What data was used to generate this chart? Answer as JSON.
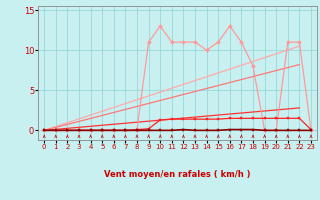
{
  "bg_color": "#c8f0f0",
  "grid_color": "#99d9d9",
  "xlabel": "Vent moyen/en rafales ( km/h )",
  "xlim": [
    -0.5,
    23.5
  ],
  "ylim": [
    -1.2,
    15.5
  ],
  "yticks": [
    0,
    5,
    10,
    15
  ],
  "xticks": [
    0,
    1,
    2,
    3,
    4,
    5,
    6,
    7,
    8,
    9,
    10,
    11,
    12,
    13,
    14,
    15,
    16,
    17,
    18,
    19,
    20,
    21,
    22,
    23
  ],
  "x": [
    0,
    1,
    2,
    3,
    4,
    5,
    6,
    7,
    8,
    9,
    10,
    11,
    12,
    13,
    14,
    15,
    16,
    17,
    18,
    19,
    20,
    21,
    22,
    23
  ],
  "line_pink_y": [
    0,
    0,
    0,
    0,
    0,
    0,
    0,
    0,
    0.1,
    11,
    13,
    11,
    11,
    11,
    10,
    11,
    13,
    11,
    8,
    0,
    0,
    11,
    11,
    0
  ],
  "line_pink_color": "#ff9999",
  "line_red_y": [
    0,
    0,
    0,
    0,
    0,
    0,
    0,
    0,
    0.1,
    0.2,
    1.3,
    1.4,
    1.4,
    1.4,
    1.4,
    1.4,
    1.5,
    1.5,
    1.5,
    1.5,
    1.5,
    1.5,
    1.5,
    0.1
  ],
  "line_red_color": "#ff2222",
  "line_dark_y": [
    0,
    0,
    0,
    0,
    0,
    0,
    0,
    0,
    0,
    0,
    0,
    0,
    0.1,
    0,
    0,
    0,
    0.1,
    0.1,
    0.1,
    0,
    0,
    0,
    0,
    0
  ],
  "line_dark_color": "#880000",
  "trend1_x": [
    0,
    22
  ],
  "trend1_y": [
    0,
    10.5
  ],
  "trend1_color": "#ffaaaa",
  "trend2_x": [
    0,
    22
  ],
  "trend2_y": [
    0,
    8.2
  ],
  "trend2_color": "#ff7777",
  "trend3_x": [
    0,
    22
  ],
  "trend3_y": [
    0,
    2.8
  ],
  "trend3_color": "#ff3333",
  "tick_color": "#cc0000",
  "xlabel_color": "#cc0000",
  "xlabel_fontsize": 6,
  "tick_fontsize": 5
}
